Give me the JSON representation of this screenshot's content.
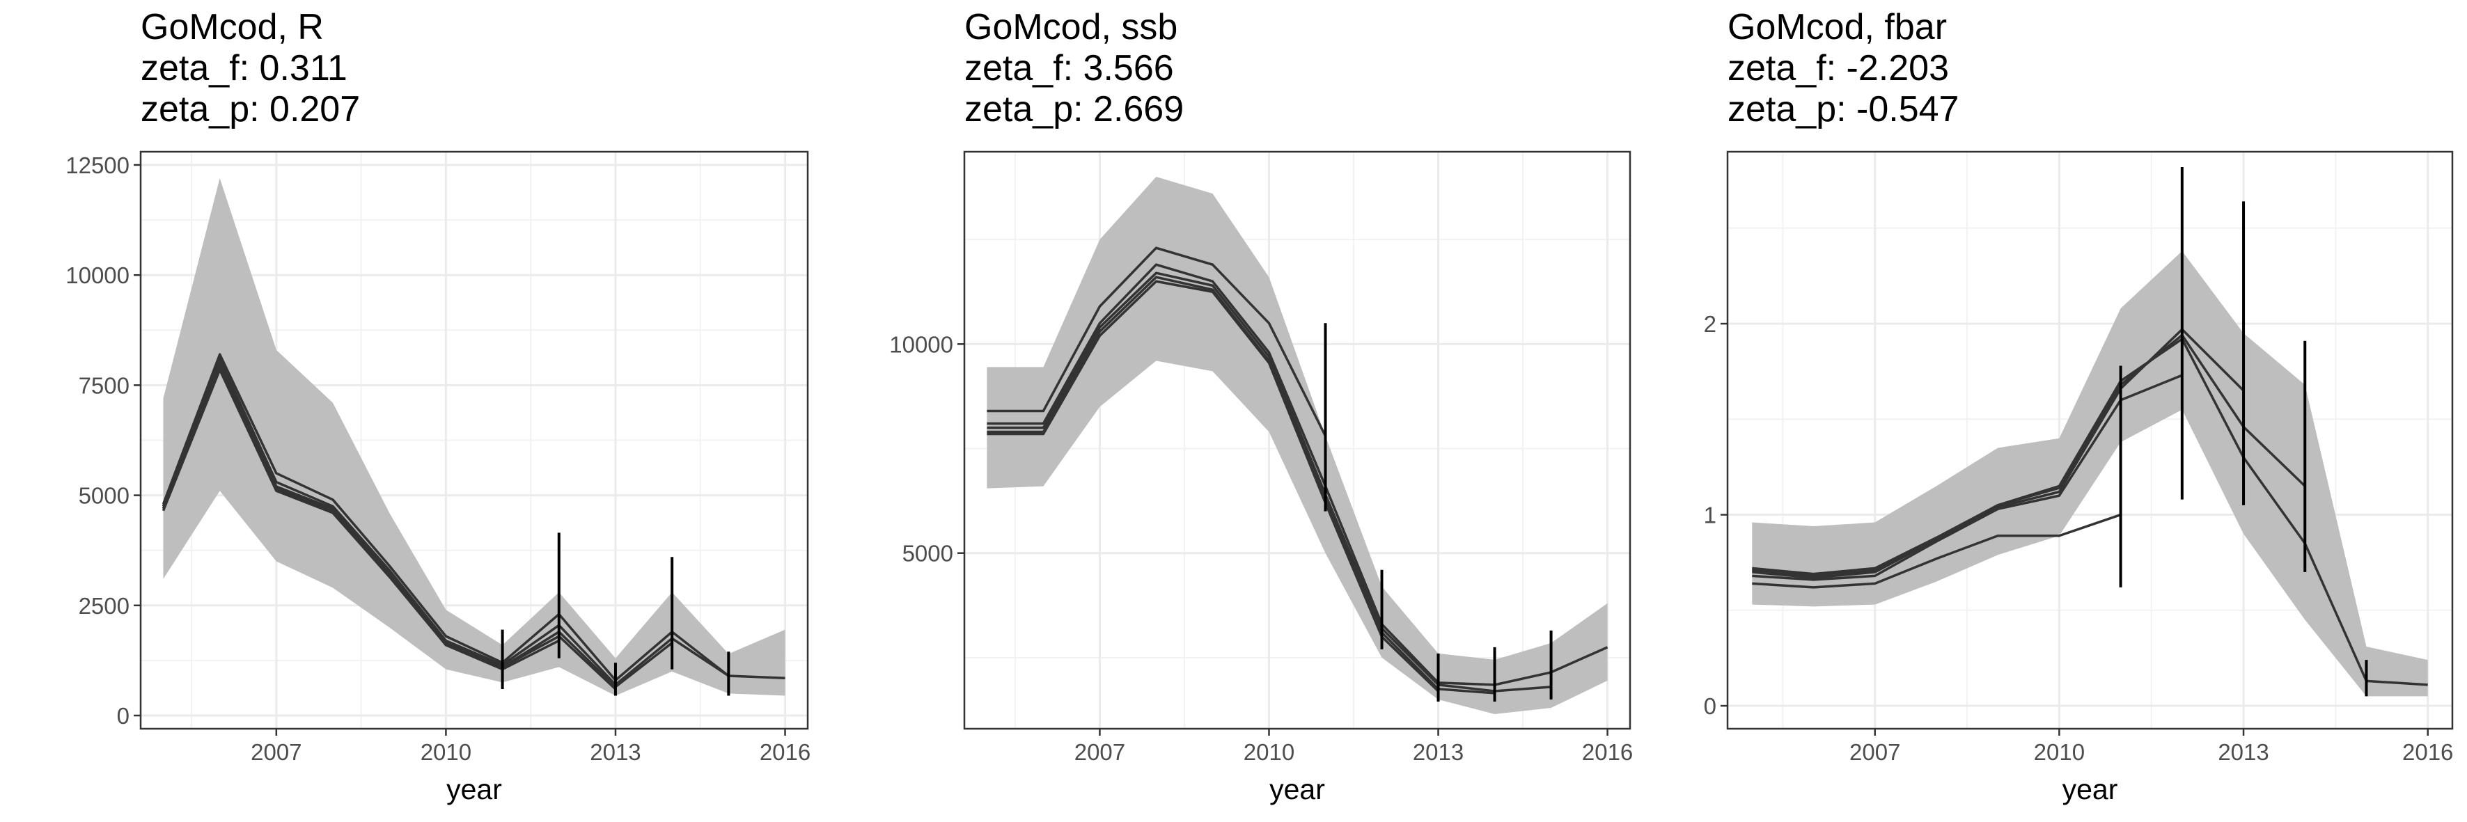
{
  "chart_data": [
    {
      "type": "line",
      "title_lines": [
        "GoMcod, R",
        "zeta_f: 0.311",
        "zeta_p: 0.207"
      ],
      "xlabel": "year",
      "ylabel": "",
      "xlim": [
        2004.6,
        2016.4
      ],
      "ylim": [
        -300,
        12800
      ],
      "xticks": [
        2007,
        2010,
        2013,
        2016
      ],
      "yticks": [
        0,
        2500,
        5000,
        7500,
        10000,
        12500
      ],
      "ytick_labels": [
        "0",
        "2500",
        "5000",
        "7500",
        "10000",
        "12500"
      ],
      "grid": true,
      "ribbon": {
        "x": [
          2005,
          2006,
          2007,
          2008,
          2009,
          2010,
          2011,
          2012,
          2013,
          2014,
          2015,
          2016
        ],
        "lower": [
          3100,
          5100,
          3500,
          2900,
          2000,
          1050,
          750,
          1100,
          450,
          1000,
          500,
          450
        ],
        "upper": [
          7200,
          12200,
          8300,
          7100,
          4600,
          2400,
          1600,
          2800,
          1300,
          2800,
          1400,
          1950
        ]
      },
      "series": [
        {
          "x": [
            2005,
            2006,
            2007,
            2008,
            2009,
            2010,
            2011,
            2012,
            2013,
            2014,
            2015,
            2016
          ],
          "values": [
            4800,
            8200,
            5500,
            4900,
            3400,
            1800,
            1200,
            2300,
            800,
            1900,
            900,
            850
          ]
        },
        {
          "x": [
            2005,
            2006,
            2007,
            2008,
            2009,
            2010,
            2011,
            2012,
            2013,
            2014,
            2015
          ],
          "values": [
            4750,
            8100,
            5300,
            4750,
            3300,
            1700,
            1150,
            2050,
            700,
            1750,
            900
          ]
        },
        {
          "x": [
            2005,
            2006,
            2007,
            2008,
            2009,
            2010,
            2011,
            2012,
            2013,
            2014
          ],
          "values": [
            4700,
            8000,
            5200,
            4700,
            3250,
            1650,
            1100,
            1900,
            650,
            1650
          ]
        },
        {
          "x": [
            2005,
            2006,
            2007,
            2008,
            2009,
            2010,
            2011,
            2012,
            2013
          ],
          "values": [
            4700,
            7900,
            5150,
            4650,
            3200,
            1600,
            1100,
            1800,
            600
          ]
        },
        {
          "x": [
            2005,
            2006,
            2007,
            2008,
            2009,
            2010,
            2011,
            2012
          ],
          "values": [
            4650,
            7850,
            5100,
            4600,
            3150,
            1600,
            1050,
            1700
          ]
        }
      ],
      "error_bars": [
        {
          "x": 2011,
          "low": 600,
          "high": 1950
        },
        {
          "x": 2012,
          "low": 1300,
          "high": 4150
        },
        {
          "x": 2013,
          "low": 450,
          "high": 1200
        },
        {
          "x": 2014,
          "low": 1050,
          "high": 3600
        },
        {
          "x": 2015,
          "low": 450,
          "high": 1450
        }
      ]
    },
    {
      "type": "line",
      "title_lines": [
        "GoMcod, ssb",
        "zeta_f: 3.566",
        "zeta_p: 2.669"
      ],
      "xlabel": "year",
      "ylabel": "",
      "xlim": [
        2004.6,
        2016.4
      ],
      "ylim": [
        800,
        14600
      ],
      "xticks": [
        2007,
        2010,
        2013,
        2016
      ],
      "yticks": [
        5000,
        10000
      ],
      "ytick_labels": [
        "5000",
        "10000"
      ],
      "grid": true,
      "ribbon": {
        "x": [
          2005,
          2006,
          2007,
          2008,
          2009,
          2010,
          2011,
          2012,
          2013,
          2014,
          2015,
          2016
        ],
        "lower": [
          6550,
          6600,
          8500,
          9600,
          9350,
          7900,
          5000,
          2500,
          1500,
          1150,
          1300,
          1950
        ],
        "upper": [
          9450,
          9450,
          12500,
          14000,
          13600,
          11600,
          7800,
          4200,
          2600,
          2450,
          2850,
          3800
        ]
      },
      "series": [
        {
          "x": [
            2005,
            2006,
            2007,
            2008,
            2009,
            2010,
            2011
          ],
          "values": [
            8400,
            8400,
            10900,
            12300,
            11900,
            10500,
            7800
          ]
        },
        {
          "x": [
            2005,
            2006,
            2007,
            2008,
            2009,
            2010,
            2011,
            2012,
            2013,
            2014,
            2015,
            2016
          ],
          "values": [
            8100,
            8100,
            10500,
            11900,
            11500,
            9800,
            6600,
            3300,
            1900,
            1850,
            2150,
            2750
          ]
        },
        {
          "x": [
            2005,
            2006,
            2007,
            2008,
            2009,
            2010,
            2011,
            2012,
            2013,
            2014,
            2015
          ],
          "values": [
            8000,
            8000,
            10400,
            11700,
            11400,
            9700,
            6400,
            3200,
            1850,
            1700,
            1800
          ]
        },
        {
          "x": [
            2005,
            2006,
            2007,
            2008,
            2009,
            2010,
            2011,
            2012,
            2013,
            2014
          ],
          "values": [
            7900,
            7900,
            10300,
            11600,
            11300,
            9600,
            6300,
            3100,
            1750,
            1650
          ]
        },
        {
          "x": [
            2005,
            2006,
            2007,
            2008,
            2009,
            2010,
            2011,
            2012,
            2013
          ],
          "values": [
            7850,
            7850,
            10200,
            11500,
            11250,
            9550,
            6200,
            3000,
            1700
          ]
        }
      ],
      "error_bars": [
        {
          "x": 2011,
          "low": 6000,
          "high": 10500
        },
        {
          "x": 2012,
          "low": 2700,
          "high": 4600
        },
        {
          "x": 2013,
          "low": 1450,
          "high": 2600
        },
        {
          "x": 2014,
          "low": 1450,
          "high": 2750
        },
        {
          "x": 2015,
          "low": 1500,
          "high": 3150
        }
      ]
    },
    {
      "type": "line",
      "title_lines": [
        "GoMcod, fbar",
        "zeta_f: -2.203",
        "zeta_p: -0.547"
      ],
      "xlabel": "year",
      "ylabel": "",
      "xlim": [
        2004.6,
        2016.4
      ],
      "ylim": [
        -0.12,
        2.9
      ],
      "xticks": [
        2007,
        2010,
        2013,
        2016
      ],
      "yticks": [
        0,
        1,
        2
      ],
      "ytick_labels": [
        "0",
        "1",
        "2"
      ],
      "grid": true,
      "ribbon": {
        "x": [
          2005,
          2006,
          2007,
          2008,
          2009,
          2010,
          2011,
          2012,
          2013,
          2014,
          2015,
          2016
        ],
        "lower": [
          0.53,
          0.52,
          0.53,
          0.65,
          0.79,
          0.89,
          1.38,
          1.55,
          0.9,
          0.45,
          0.05,
          0.05
        ],
        "upper": [
          0.96,
          0.94,
          0.96,
          1.15,
          1.35,
          1.4,
          2.08,
          2.38,
          1.95,
          1.68,
          0.31,
          0.24
        ]
      },
      "series": [
        {
          "x": [
            2005,
            2006,
            2007,
            2008,
            2009,
            2010,
            2011
          ],
          "values": [
            0.64,
            0.62,
            0.64,
            0.77,
            0.89,
            0.89,
            1.0
          ]
        },
        {
          "x": [
            2005,
            2006,
            2007,
            2008,
            2009,
            2010,
            2011,
            2012
          ],
          "values": [
            0.68,
            0.66,
            0.68,
            0.86,
            1.03,
            1.1,
            1.6,
            1.73
          ]
        },
        {
          "x": [
            2005,
            2006,
            2007,
            2008,
            2009,
            2010,
            2011,
            2012,
            2013
          ],
          "values": [
            0.7,
            0.67,
            0.7,
            0.87,
            1.04,
            1.12,
            1.66,
            1.97,
            1.65
          ]
        },
        {
          "x": [
            2005,
            2006,
            2007,
            2008,
            2009,
            2010,
            2011,
            2012,
            2013,
            2014
          ],
          "values": [
            0.71,
            0.68,
            0.71,
            0.87,
            1.05,
            1.14,
            1.68,
            1.94,
            1.46,
            1.15
          ]
        },
        {
          "x": [
            2005,
            2006,
            2007,
            2008,
            2009,
            2010,
            2011,
            2012,
            2013,
            2014,
            2015,
            2016
          ],
          "values": [
            0.72,
            0.69,
            0.72,
            0.88,
            1.05,
            1.15,
            1.7,
            1.92,
            1.3,
            0.85,
            0.13,
            0.11
          ]
        }
      ],
      "error_bars": [
        {
          "x": 2011,
          "low": 0.62,
          "high": 1.78
        },
        {
          "x": 2012,
          "low": 1.08,
          "high": 2.82
        },
        {
          "x": 2013,
          "low": 1.05,
          "high": 2.64
        },
        {
          "x": 2014,
          "low": 0.7,
          "high": 1.91
        },
        {
          "x": 2015,
          "low": 0.05,
          "high": 0.24
        }
      ]
    }
  ]
}
